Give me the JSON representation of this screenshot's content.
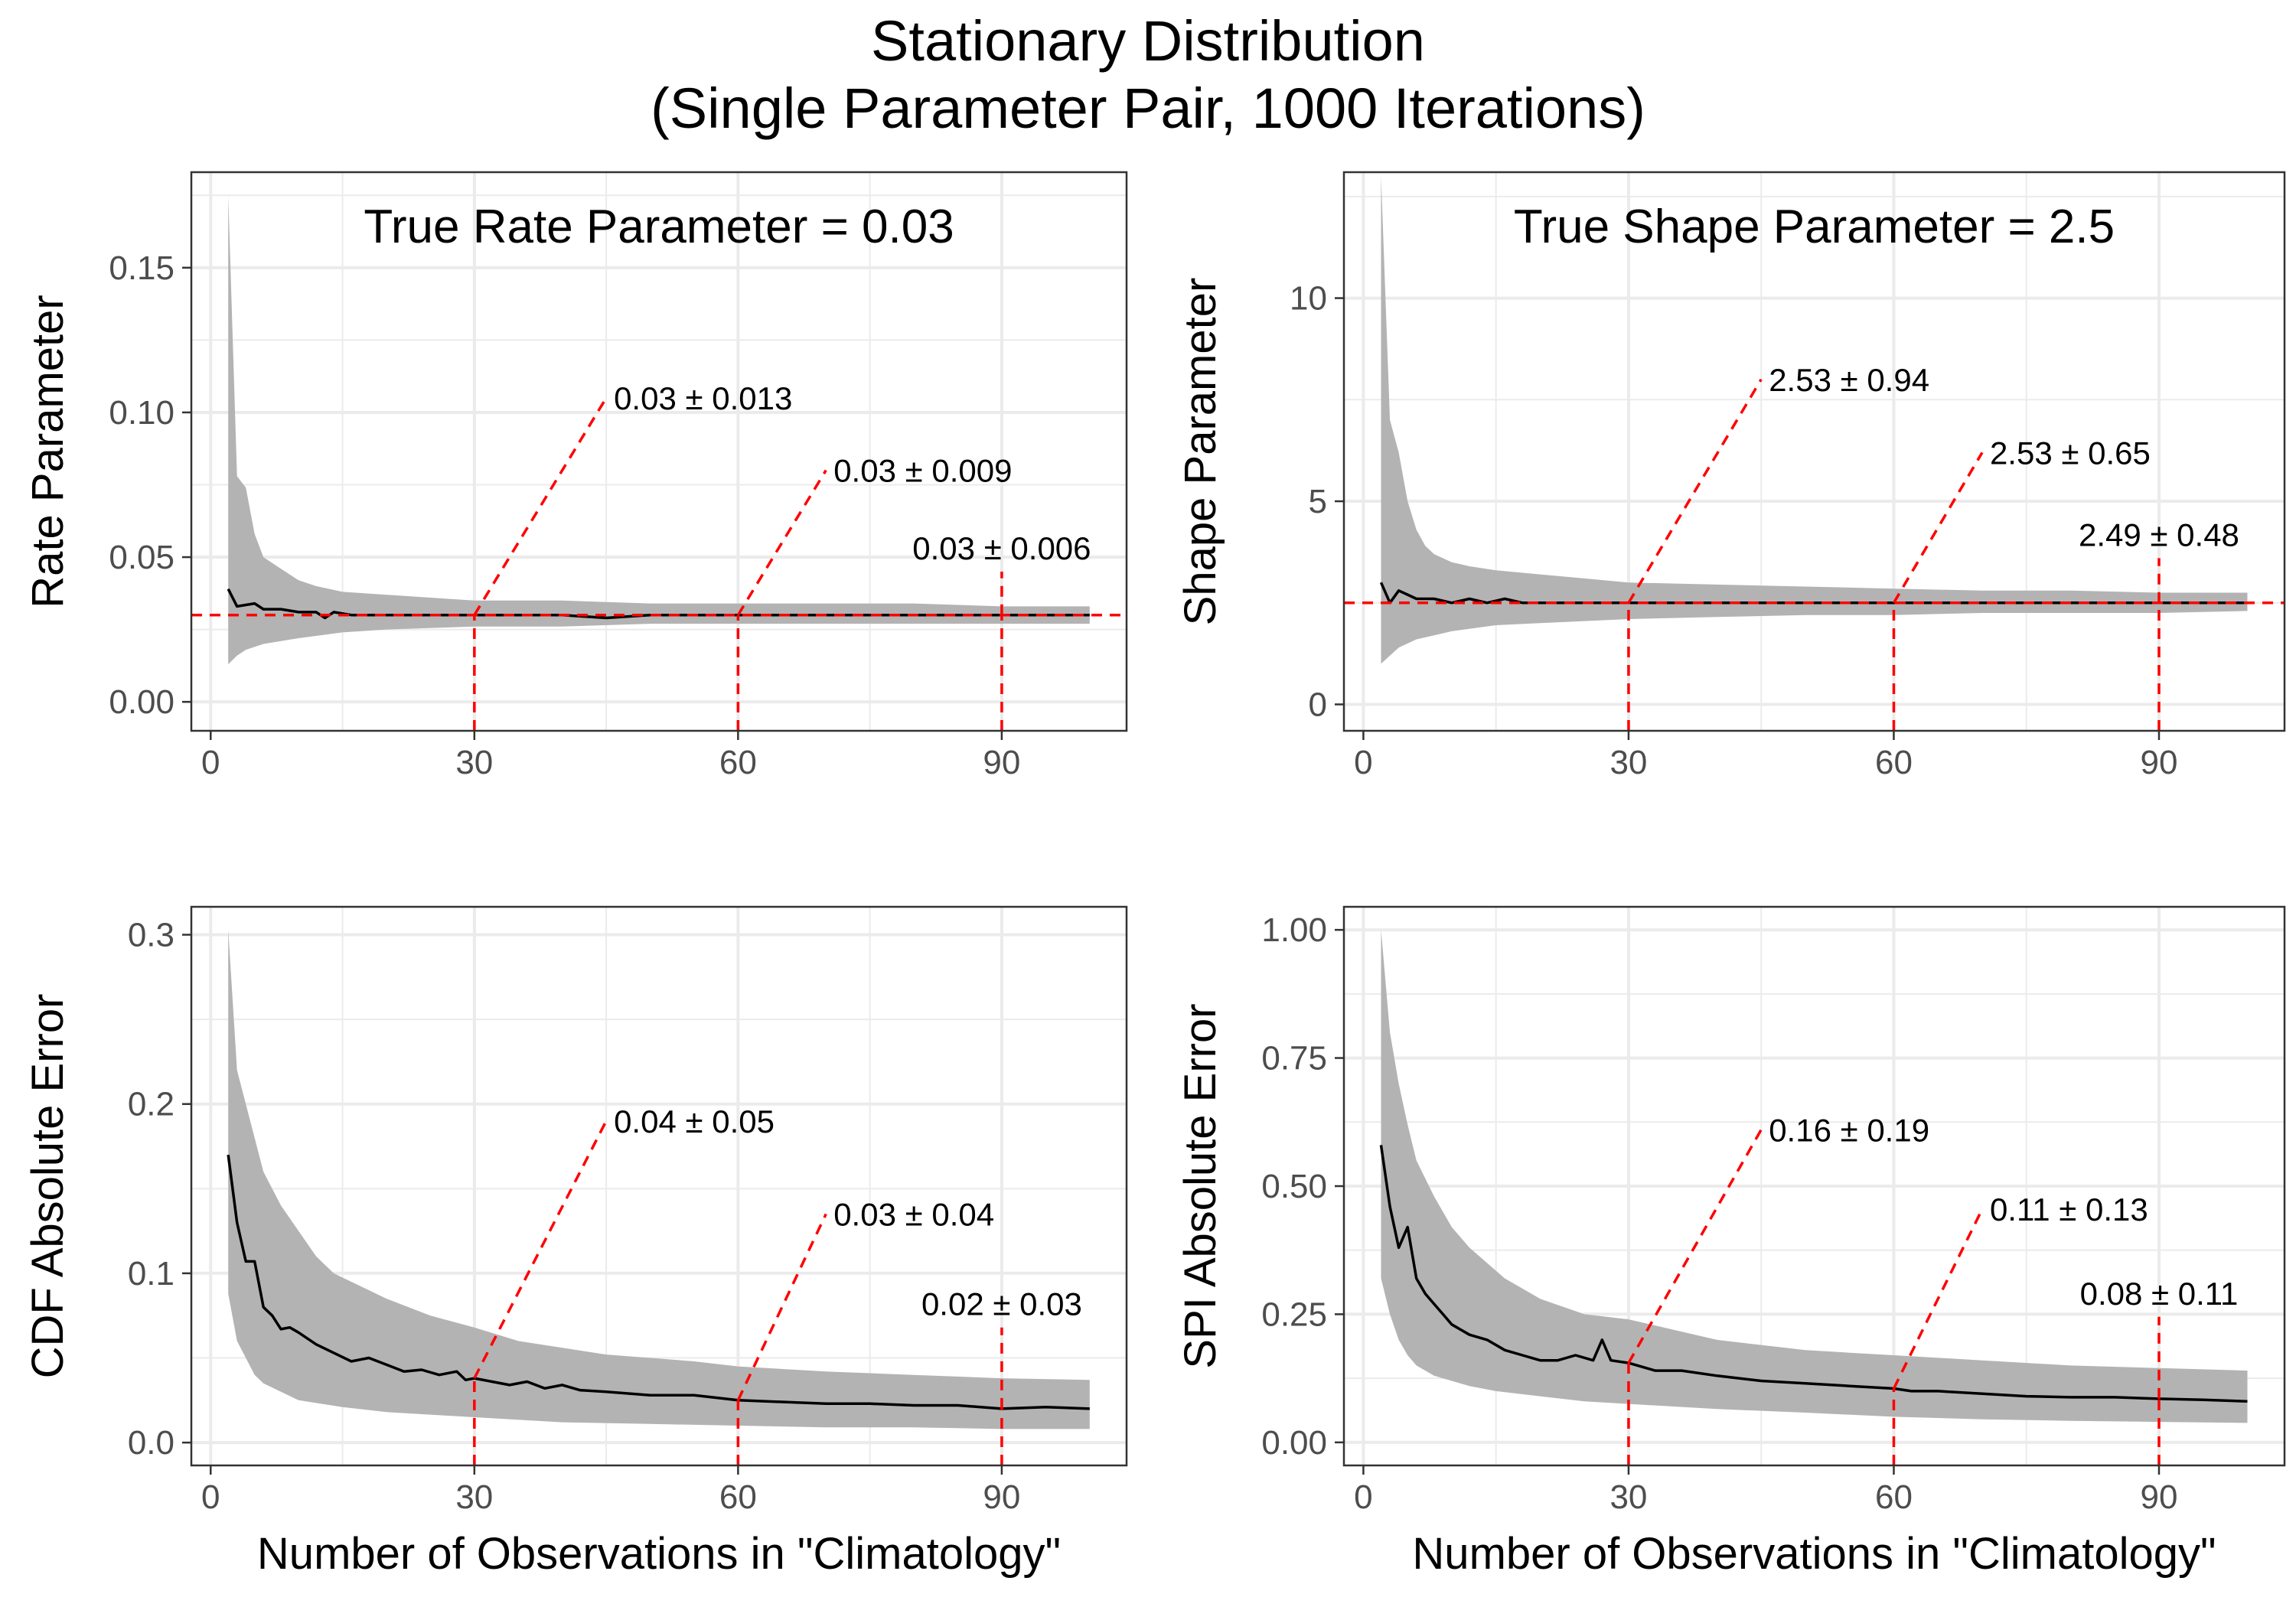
{
  "title_line1": "Stationary Distribution",
  "title_line2": "(Single Parameter Pair, 1000 Iterations)",
  "colors": {
    "band": "#b3b3b3",
    "line": "#000000",
    "reference": "#ff0000",
    "grid": "#ebebeb",
    "frame": "#333333"
  },
  "chart_data": [
    {
      "type": "area",
      "heading": "True Rate Parameter = 0.03",
      "xlabel": "",
      "ylabel": "Rate Parameter",
      "xlim": [
        -2.2,
        104.2
      ],
      "ylim": [
        -0.01,
        0.183
      ],
      "xticks": [
        0,
        30,
        60,
        90
      ],
      "yticks": [
        0.0,
        0.05,
        0.1,
        0.15
      ],
      "ytick_labels": [
        "0.00",
        "0.05",
        "0.10",
        "0.15"
      ],
      "hline": 0.03,
      "mean": [
        [
          2,
          0.039
        ],
        [
          3,
          0.033
        ],
        [
          5,
          0.034
        ],
        [
          6,
          0.032
        ],
        [
          8,
          0.032
        ],
        [
          10,
          0.031
        ],
        [
          12,
          0.031
        ],
        [
          13,
          0.029
        ],
        [
          14,
          0.031
        ],
        [
          16,
          0.03
        ],
        [
          20,
          0.03
        ],
        [
          25,
          0.03
        ],
        [
          30,
          0.03
        ],
        [
          35,
          0.03
        ],
        [
          40,
          0.03
        ],
        [
          45,
          0.029
        ],
        [
          50,
          0.03
        ],
        [
          60,
          0.03
        ],
        [
          70,
          0.03
        ],
        [
          80,
          0.03
        ],
        [
          90,
          0.03
        ],
        [
          100,
          0.03
        ]
      ],
      "band_upper": [
        [
          2,
          0.175
        ],
        [
          3,
          0.078
        ],
        [
          4,
          0.074
        ],
        [
          5,
          0.058
        ],
        [
          6,
          0.05
        ],
        [
          8,
          0.046
        ],
        [
          10,
          0.042
        ],
        [
          12,
          0.04
        ],
        [
          15,
          0.038
        ],
        [
          20,
          0.037
        ],
        [
          25,
          0.036
        ],
        [
          30,
          0.035
        ],
        [
          40,
          0.035
        ],
        [
          50,
          0.034
        ],
        [
          60,
          0.034
        ],
        [
          70,
          0.034
        ],
        [
          80,
          0.034
        ],
        [
          90,
          0.033
        ],
        [
          100,
          0.033
        ]
      ],
      "band_lower": [
        [
          2,
          0.013
        ],
        [
          3,
          0.016
        ],
        [
          4,
          0.018
        ],
        [
          6,
          0.02
        ],
        [
          8,
          0.021
        ],
        [
          10,
          0.022
        ],
        [
          15,
          0.024
        ],
        [
          20,
          0.025
        ],
        [
          30,
          0.026
        ],
        [
          40,
          0.026
        ],
        [
          50,
          0.027
        ],
        [
          60,
          0.027
        ],
        [
          70,
          0.027
        ],
        [
          80,
          0.027
        ],
        [
          90,
          0.027
        ],
        [
          100,
          0.027
        ]
      ],
      "annotations": [
        {
          "x": 30,
          "y": 0.03,
          "label": "0.03 ± 0.013",
          "lx": 45,
          "ly": 0.105,
          "align": "start"
        },
        {
          "x": 60,
          "y": 0.03,
          "label": "0.03 ± 0.009",
          "lx": 70,
          "ly": 0.08,
          "align": "start"
        },
        {
          "x": 90,
          "y": 0.03,
          "label": "0.03 ± 0.006",
          "lx": 90,
          "ly": 0.045,
          "align": "middle"
        }
      ]
    },
    {
      "type": "area",
      "heading": "True Shape Parameter = 2.5",
      "xlabel": "",
      "ylabel": "Shape Parameter",
      "xlim": [
        -2.2,
        104.2
      ],
      "ylim": [
        -0.65,
        13.1
      ],
      "xticks": [
        0,
        30,
        60,
        90
      ],
      "yticks": [
        0,
        5,
        10
      ],
      "ytick_labels": [
        "0",
        "5",
        "10"
      ],
      "hline": 2.5,
      "mean": [
        [
          2,
          3.0
        ],
        [
          3,
          2.5
        ],
        [
          4,
          2.8
        ],
        [
          5,
          2.7
        ],
        [
          6,
          2.6
        ],
        [
          8,
          2.6
        ],
        [
          10,
          2.5
        ],
        [
          12,
          2.6
        ],
        [
          14,
          2.5
        ],
        [
          16,
          2.6
        ],
        [
          18,
          2.5
        ],
        [
          20,
          2.5
        ],
        [
          25,
          2.5
        ],
        [
          30,
          2.5
        ],
        [
          35,
          2.5
        ],
        [
          40,
          2.5
        ],
        [
          50,
          2.5
        ],
        [
          60,
          2.5
        ],
        [
          70,
          2.5
        ],
        [
          80,
          2.5
        ],
        [
          90,
          2.5
        ],
        [
          100,
          2.5
        ]
      ],
      "band_upper": [
        [
          2,
          13.0
        ],
        [
          3,
          7.0
        ],
        [
          4,
          6.2
        ],
        [
          5,
          5.0
        ],
        [
          6,
          4.3
        ],
        [
          7,
          3.9
        ],
        [
          8,
          3.7
        ],
        [
          10,
          3.5
        ],
        [
          12,
          3.4
        ],
        [
          15,
          3.3
        ],
        [
          20,
          3.2
        ],
        [
          25,
          3.1
        ],
        [
          30,
          3.0
        ],
        [
          40,
          2.95
        ],
        [
          50,
          2.9
        ],
        [
          60,
          2.85
        ],
        [
          70,
          2.8
        ],
        [
          80,
          2.8
        ],
        [
          90,
          2.75
        ],
        [
          100,
          2.75
        ]
      ],
      "band_lower": [
        [
          2,
          1.0
        ],
        [
          3,
          1.2
        ],
        [
          4,
          1.4
        ],
        [
          6,
          1.6
        ],
        [
          8,
          1.7
        ],
        [
          10,
          1.8
        ],
        [
          15,
          1.95
        ],
        [
          20,
          2.0
        ],
        [
          30,
          2.1
        ],
        [
          40,
          2.15
        ],
        [
          50,
          2.2
        ],
        [
          60,
          2.2
        ],
        [
          70,
          2.25
        ],
        [
          80,
          2.25
        ],
        [
          90,
          2.25
        ],
        [
          100,
          2.3
        ]
      ],
      "annotations": [
        {
          "x": 30,
          "y": 2.5,
          "label": "2.53 ± 0.94",
          "lx": 45,
          "ly": 8.0,
          "align": "start"
        },
        {
          "x": 60,
          "y": 2.5,
          "label": "2.53 ± 0.65",
          "lx": 70,
          "ly": 6.2,
          "align": "start"
        },
        {
          "x": 90,
          "y": 2.5,
          "label": "2.49 ± 0.48",
          "lx": 90,
          "ly": 3.6,
          "align": "middle"
        }
      ]
    },
    {
      "type": "area",
      "heading": "",
      "xlabel": "Number of Observations in \"Climatology\"",
      "ylabel": "CDF Absolute Error",
      "xlim": [
        -2.2,
        104.2
      ],
      "ylim": [
        -0.0135,
        0.3165
      ],
      "xticks": [
        0,
        30,
        60,
        90
      ],
      "yticks": [
        0.0,
        0.1,
        0.2,
        0.3
      ],
      "ytick_labels": [
        "0.0",
        "0.1",
        "0.2",
        "0.3"
      ],
      "hline": null,
      "mean": [
        [
          2,
          0.17
        ],
        [
          3,
          0.13
        ],
        [
          4,
          0.107
        ],
        [
          5,
          0.107
        ],
        [
          6,
          0.08
        ],
        [
          7,
          0.075
        ],
        [
          8,
          0.067
        ],
        [
          9,
          0.068
        ],
        [
          10,
          0.065
        ],
        [
          12,
          0.058
        ],
        [
          14,
          0.053
        ],
        [
          16,
          0.048
        ],
        [
          18,
          0.05
        ],
        [
          20,
          0.046
        ],
        [
          22,
          0.042
        ],
        [
          24,
          0.043
        ],
        [
          26,
          0.04
        ],
        [
          28,
          0.042
        ],
        [
          29,
          0.037
        ],
        [
          30,
          0.038
        ],
        [
          32,
          0.036
        ],
        [
          34,
          0.034
        ],
        [
          36,
          0.036
        ],
        [
          38,
          0.032
        ],
        [
          40,
          0.034
        ],
        [
          42,
          0.031
        ],
        [
          45,
          0.03
        ],
        [
          50,
          0.028
        ],
        [
          55,
          0.028
        ],
        [
          60,
          0.025
        ],
        [
          65,
          0.024
        ],
        [
          70,
          0.023
        ],
        [
          75,
          0.023
        ],
        [
          80,
          0.022
        ],
        [
          85,
          0.022
        ],
        [
          90,
          0.02
        ],
        [
          95,
          0.021
        ],
        [
          100,
          0.02
        ]
      ],
      "band_upper": [
        [
          2,
          0.303
        ],
        [
          3,
          0.22
        ],
        [
          4,
          0.2
        ],
        [
          5,
          0.18
        ],
        [
          6,
          0.16
        ],
        [
          8,
          0.14
        ],
        [
          10,
          0.125
        ],
        [
          12,
          0.11
        ],
        [
          14,
          0.1
        ],
        [
          16,
          0.095
        ],
        [
          18,
          0.09
        ],
        [
          20,
          0.085
        ],
        [
          25,
          0.075
        ],
        [
          30,
          0.068
        ],
        [
          35,
          0.06
        ],
        [
          40,
          0.056
        ],
        [
          45,
          0.052
        ],
        [
          50,
          0.05
        ],
        [
          55,
          0.048
        ],
        [
          60,
          0.045
        ],
        [
          70,
          0.042
        ],
        [
          80,
          0.04
        ],
        [
          90,
          0.038
        ],
        [
          100,
          0.037
        ]
      ],
      "band_lower": [
        [
          2,
          0.088
        ],
        [
          3,
          0.06
        ],
        [
          4,
          0.05
        ],
        [
          5,
          0.04
        ],
        [
          6,
          0.035
        ],
        [
          8,
          0.03
        ],
        [
          10,
          0.025
        ],
        [
          15,
          0.021
        ],
        [
          20,
          0.018
        ],
        [
          30,
          0.015
        ],
        [
          40,
          0.012
        ],
        [
          50,
          0.011
        ],
        [
          60,
          0.01
        ],
        [
          70,
          0.009
        ],
        [
          80,
          0.009
        ],
        [
          90,
          0.008
        ],
        [
          100,
          0.008
        ]
      ],
      "annotations": [
        {
          "x": 30,
          "y": 0.038,
          "label": "0.04 ± 0.05",
          "lx": 45,
          "ly": 0.19,
          "align": "start"
        },
        {
          "x": 60,
          "y": 0.025,
          "label": "0.03 ± 0.04",
          "lx": 70,
          "ly": 0.135,
          "align": "start"
        },
        {
          "x": 90,
          "y": 0.02,
          "label": "0.02 ± 0.03",
          "lx": 90,
          "ly": 0.068,
          "align": "middle"
        }
      ]
    },
    {
      "type": "area",
      "heading": "",
      "xlabel": "Number of Observations in \"Climatology\"",
      "ylabel": "SPI Absolute Error",
      "xlim": [
        -2.2,
        104.2
      ],
      "ylim": [
        -0.045,
        1.045
      ],
      "xticks": [
        0,
        30,
        60,
        90
      ],
      "yticks": [
        0.0,
        0.25,
        0.5,
        0.75,
        1.0
      ],
      "ytick_labels": [
        "0.00",
        "0.25",
        "0.50",
        "0.75",
        "1.00"
      ],
      "hline": null,
      "mean": [
        [
          2,
          0.58
        ],
        [
          3,
          0.46
        ],
        [
          4,
          0.38
        ],
        [
          5,
          0.42
        ],
        [
          6,
          0.32
        ],
        [
          7,
          0.29
        ],
        [
          8,
          0.27
        ],
        [
          9,
          0.25
        ],
        [
          10,
          0.23
        ],
        [
          12,
          0.21
        ],
        [
          14,
          0.2
        ],
        [
          16,
          0.18
        ],
        [
          18,
          0.17
        ],
        [
          20,
          0.16
        ],
        [
          22,
          0.16
        ],
        [
          24,
          0.17
        ],
        [
          26,
          0.16
        ],
        [
          27,
          0.2
        ],
        [
          28,
          0.16
        ],
        [
          30,
          0.155
        ],
        [
          33,
          0.14
        ],
        [
          36,
          0.14
        ],
        [
          40,
          0.13
        ],
        [
          45,
          0.12
        ],
        [
          50,
          0.115
        ],
        [
          55,
          0.11
        ],
        [
          60,
          0.105
        ],
        [
          62,
          0.1
        ],
        [
          65,
          0.1
        ],
        [
          70,
          0.095
        ],
        [
          75,
          0.09
        ],
        [
          80,
          0.088
        ],
        [
          85,
          0.088
        ],
        [
          90,
          0.085
        ],
        [
          95,
          0.083
        ],
        [
          100,
          0.08
        ]
      ],
      "band_upper": [
        [
          2,
          1.0
        ],
        [
          3,
          0.8
        ],
        [
          4,
          0.7
        ],
        [
          5,
          0.62
        ],
        [
          6,
          0.55
        ],
        [
          8,
          0.48
        ],
        [
          10,
          0.42
        ],
        [
          12,
          0.38
        ],
        [
          14,
          0.35
        ],
        [
          16,
          0.32
        ],
        [
          18,
          0.3
        ],
        [
          20,
          0.28
        ],
        [
          25,
          0.25
        ],
        [
          30,
          0.24
        ],
        [
          35,
          0.22
        ],
        [
          40,
          0.2
        ],
        [
          45,
          0.19
        ],
        [
          50,
          0.18
        ],
        [
          55,
          0.175
        ],
        [
          60,
          0.17
        ],
        [
          70,
          0.16
        ],
        [
          80,
          0.15
        ],
        [
          90,
          0.145
        ],
        [
          100,
          0.14
        ]
      ],
      "band_lower": [
        [
          2,
          0.32
        ],
        [
          3,
          0.25
        ],
        [
          4,
          0.2
        ],
        [
          5,
          0.17
        ],
        [
          6,
          0.15
        ],
        [
          8,
          0.13
        ],
        [
          10,
          0.12
        ],
        [
          12,
          0.11
        ],
        [
          15,
          0.1
        ],
        [
          20,
          0.09
        ],
        [
          25,
          0.08
        ],
        [
          30,
          0.075
        ],
        [
          40,
          0.065
        ],
        [
          50,
          0.058
        ],
        [
          60,
          0.05
        ],
        [
          70,
          0.045
        ],
        [
          80,
          0.042
        ],
        [
          90,
          0.04
        ],
        [
          100,
          0.038
        ]
      ],
      "annotations": [
        {
          "x": 30,
          "y": 0.155,
          "label": "0.16 ± 0.19",
          "lx": 45,
          "ly": 0.61,
          "align": "start"
        },
        {
          "x": 60,
          "y": 0.105,
          "label": "0.11 ± 0.13",
          "lx": 70,
          "ly": 0.455,
          "align": "start"
        },
        {
          "x": 90,
          "y": 0.085,
          "label": "0.08 ± 0.11",
          "lx": 90,
          "ly": 0.245,
          "align": "middle"
        }
      ]
    }
  ]
}
